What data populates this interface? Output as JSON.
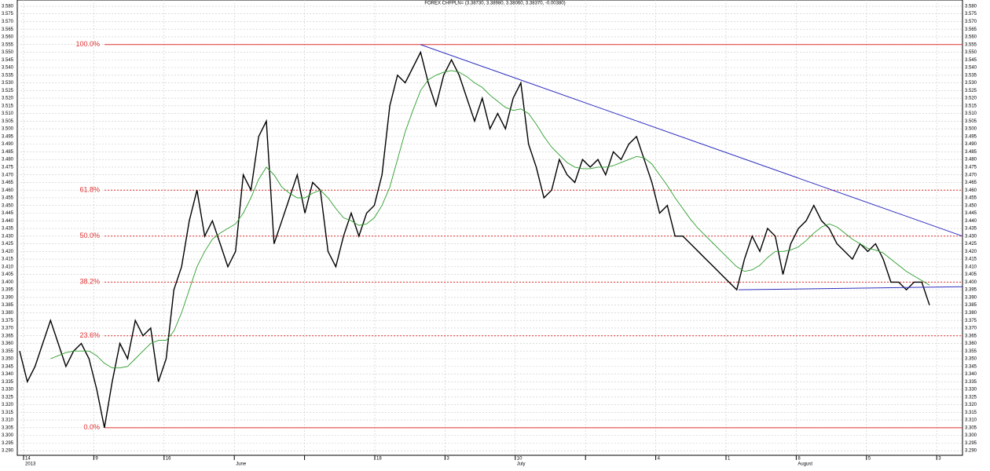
{
  "chart_data": {
    "type": "line",
    "title": "FOREX CHFPLN= (3.38730, 3.38980, 3.38060, 3.38370, -0.00380)",
    "xticks": [
      "14",
      "9",
      "16",
      null,
      null,
      "18",
      "3",
      "10",
      null,
      "4",
      "1",
      "8",
      "5",
      "3"
    ],
    "xticks_row2": [
      "2013",
      null,
      null,
      "June",
      null,
      null,
      null,
      "July",
      null,
      null,
      null,
      "August",
      null,
      null
    ],
    "ylim": [
      3.287,
      3.582
    ],
    "yticks": [
      {
        "value": 3.29,
        "label": "3.290"
      },
      {
        "value": 3.295,
        "label": "3.295"
      },
      {
        "value": 3.3,
        "label": "3.300"
      },
      {
        "value": 3.305,
        "label": "3.305"
      },
      {
        "value": 3.31,
        "label": "3.310"
      },
      {
        "value": 3.315,
        "label": "3.315"
      },
      {
        "value": 3.32,
        "label": "3.320"
      },
      {
        "value": 3.325,
        "label": "3.325"
      },
      {
        "value": 3.33,
        "label": "3.330"
      },
      {
        "value": 3.335,
        "label": "3.335"
      },
      {
        "value": 3.34,
        "label": "3.340"
      },
      {
        "value": 3.345,
        "label": "3.345"
      },
      {
        "value": 3.35,
        "label": "3.350"
      },
      {
        "value": 3.355,
        "label": "3.355"
      },
      {
        "value": 3.36,
        "label": "3.360"
      },
      {
        "value": 3.365,
        "label": "3.365"
      },
      {
        "value": 3.37,
        "label": "3.370"
      },
      {
        "value": 3.375,
        "label": "3.375"
      },
      {
        "value": 3.38,
        "label": "3.380"
      },
      {
        "value": 3.385,
        "label": "3.385"
      },
      {
        "value": 3.39,
        "label": "3.390"
      },
      {
        "value": 3.395,
        "label": "3.395"
      },
      {
        "value": 3.4,
        "label": "3.400"
      },
      {
        "value": 3.405,
        "label": "3.405"
      },
      {
        "value": 3.41,
        "label": "3.410"
      },
      {
        "value": 3.415,
        "label": "3.415"
      },
      {
        "value": 3.42,
        "label": "3.420"
      },
      {
        "value": 3.425,
        "label": "3.425"
      },
      {
        "value": 3.43,
        "label": "3.430"
      },
      {
        "value": 3.435,
        "label": "3.435"
      },
      {
        "value": 3.44,
        "label": "3.440"
      },
      {
        "value": 3.445,
        "label": "3.445"
      },
      {
        "value": 3.45,
        "label": "3.450"
      },
      {
        "value": 3.455,
        "label": "3.455"
      },
      {
        "value": 3.46,
        "label": "3.460"
      },
      {
        "value": 3.465,
        "label": "3.465"
      },
      {
        "value": 3.47,
        "label": "3.470"
      },
      {
        "value": 3.475,
        "label": "3.475"
      },
      {
        "value": 3.48,
        "label": "3.480"
      },
      {
        "value": 3.485,
        "label": "3.485"
      },
      {
        "value": 3.49,
        "label": "3.490"
      },
      {
        "value": 3.495,
        "label": "3.495"
      },
      {
        "value": 3.5,
        "label": "3.500"
      },
      {
        "value": 3.505,
        "label": "3.505"
      },
      {
        "value": 3.51,
        "label": "3.510"
      },
      {
        "value": 3.515,
        "label": "3.515"
      },
      {
        "value": 3.52,
        "label": "3.520"
      },
      {
        "value": 3.525,
        "label": "3.525"
      },
      {
        "value": 3.53,
        "label": "3.530"
      },
      {
        "value": 3.535,
        "label": "3.535"
      },
      {
        "value": 3.54,
        "label": "3.540"
      },
      {
        "value": 3.545,
        "label": "3.545"
      },
      {
        "value": 3.55,
        "label": "3.550"
      },
      {
        "value": 3.555,
        "label": "3.555"
      },
      {
        "value": 3.56,
        "label": "3.560"
      },
      {
        "value": 3.565,
        "label": "3.565"
      },
      {
        "value": 3.57,
        "label": "3.570"
      },
      {
        "value": 3.575,
        "label": "3.575"
      },
      {
        "value": 3.58,
        "label": "3.580"
      }
    ],
    "grid": true,
    "series": [
      {
        "color": "#000000",
        "values": [
          3.355,
          3.335,
          3.345,
          3.36,
          3.375,
          3.36,
          3.345,
          3.355,
          3.36,
          3.35,
          3.33,
          3.305,
          3.335,
          3.36,
          3.35,
          3.375,
          3.365,
          3.37,
          3.335,
          3.35,
          3.395,
          3.41,
          3.44,
          3.46,
          3.43,
          3.44,
          3.425,
          3.41,
          3.42,
          3.47,
          3.46,
          3.495,
          3.505,
          3.425,
          3.44,
          3.455,
          3.47,
          3.445,
          3.465,
          3.46,
          3.42,
          3.41,
          3.43,
          3.445,
          3.43,
          3.445,
          3.45,
          3.47,
          3.515,
          3.535,
          3.53,
          3.54,
          3.55,
          3.53,
          3.515,
          3.535,
          3.545,
          3.535,
          3.52,
          3.505,
          3.52,
          3.5,
          3.51,
          3.5,
          3.52,
          3.53,
          3.49,
          3.475,
          3.455,
          3.46,
          3.48,
          3.47,
          3.465,
          3.48,
          3.475,
          3.48,
          3.47,
          3.485,
          3.48,
          3.49,
          3.495,
          3.48,
          3.465,
          3.445,
          3.45,
          3.43,
          3.43,
          3.425,
          3.42,
          3.415,
          3.41,
          3.405,
          3.4,
          3.395,
          3.415,
          3.43,
          3.42,
          3.435,
          3.43,
          3.405,
          3.425,
          3.435,
          3.44,
          3.45,
          3.44,
          3.435,
          3.425,
          3.42,
          3.415,
          3.425,
          3.42,
          3.425,
          3.415,
          3.4,
          3.4,
          3.395,
          3.4,
          3.4,
          3.385
        ]
      },
      {
        "color": "#2e9e2e",
        "values": [
          null,
          null,
          null,
          null,
          3.35,
          3.352,
          3.354,
          3.355,
          3.355,
          3.355,
          3.352,
          3.347,
          3.344,
          3.344,
          3.345,
          3.35,
          3.355,
          3.36,
          3.362,
          3.362,
          3.368,
          3.38,
          3.395,
          3.41,
          3.42,
          3.428,
          3.432,
          3.435,
          3.438,
          3.445,
          3.455,
          3.467,
          3.475,
          3.47,
          3.462,
          3.458,
          3.455,
          3.455,
          3.458,
          3.46,
          3.455,
          3.448,
          3.442,
          3.44,
          3.437,
          3.438,
          3.442,
          3.45,
          3.462,
          3.48,
          3.498,
          3.512,
          3.525,
          3.532,
          3.535,
          3.537,
          3.538,
          3.537,
          3.534,
          3.53,
          3.527,
          3.522,
          3.518,
          3.514,
          3.512,
          3.513,
          3.51,
          3.503,
          3.495,
          3.488,
          3.483,
          3.478,
          3.475,
          3.474,
          3.474,
          3.475,
          3.475,
          3.476,
          3.478,
          3.48,
          3.482,
          3.481,
          3.477,
          3.47,
          3.463,
          3.455,
          3.448,
          3.441,
          3.435,
          3.43,
          3.425,
          3.42,
          3.415,
          3.41,
          3.407,
          3.408,
          3.411,
          3.416,
          3.42,
          3.42,
          3.421,
          3.423,
          3.427,
          3.432,
          3.436,
          3.438,
          3.436,
          3.432,
          3.428,
          3.425,
          3.422,
          3.421,
          3.419,
          3.415,
          3.411,
          3.407,
          3.404,
          3.401,
          3.398
        ]
      }
    ],
    "fib_levels": [
      {
        "label": "100.0%",
        "value": 3.555
      },
      {
        "label": "61.8%",
        "value": 3.46
      },
      {
        "label": "50.0%",
        "value": 3.43
      },
      {
        "label": "38.2%",
        "value": 3.4
      },
      {
        "label": "23.6%",
        "value": 3.365
      },
      {
        "label": "0.0%",
        "value": 3.305
      }
    ],
    "fib_color": "#e03030",
    "trendlines": [
      {
        "color": "#3030c0",
        "values": [
          3.555,
          3.43
        ]
      },
      {
        "color": "#3030c0",
        "values": [
          3.395,
          3.397
        ]
      }
    ]
  }
}
